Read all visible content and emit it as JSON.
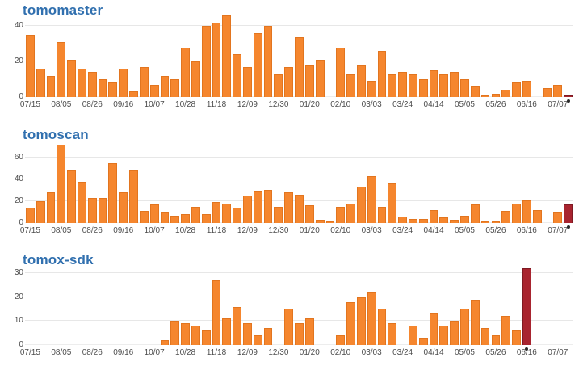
{
  "colors": {
    "bar_orange": "#F5862E",
    "bar_orange_border": "#E2751F",
    "bar_highlight_red": "#A8242F",
    "bar_highlight_border": "#7E1A23",
    "title_blue": "#3170AF",
    "axis_label_gray": "#4d4d4d",
    "gridline_gray": "#e7e7e7",
    "background": "#ffffff"
  },
  "chart_data": [
    {
      "type": "bar",
      "title": "tomomaster",
      "xlabel": "",
      "ylabel": "",
      "x_note": "weekly bins, one bar per week, tick label every 3rd week",
      "x_tick_labels": [
        "07/15",
        "08/05",
        "08/26",
        "09/16",
        "10/07",
        "10/28",
        "11/18",
        "12/09",
        "12/30",
        "01/20",
        "02/10",
        "03/03",
        "03/24",
        "04/14",
        "05/05",
        "05/26",
        "06/16",
        "07/07"
      ],
      "values": [
        35,
        16,
        12,
        31,
        21,
        16,
        14,
        10,
        8,
        16,
        3,
        17,
        7,
        12,
        10,
        28,
        20,
        40,
        42,
        46,
        24,
        17,
        36,
        40,
        13,
        17,
        34,
        18,
        21,
        0,
        28,
        13,
        18,
        9,
        26,
        13,
        14,
        13,
        10,
        15,
        13,
        14,
        10,
        6,
        1,
        2,
        4,
        8,
        9,
        0,
        5,
        7,
        1
      ],
      "y_ticks": [
        0,
        20,
        40
      ],
      "ylim": [
        0,
        47
      ],
      "grid": "horizontal",
      "legend": "none",
      "highlight_index": 52,
      "highlight_meaning": "last bar drawn in dark red with dot marker below axis"
    },
    {
      "type": "bar",
      "title": "tomoscan",
      "xlabel": "",
      "ylabel": "",
      "x_note": "weekly bins, one bar per week, tick label every 3rd week",
      "x_tick_labels": [
        "07/15",
        "08/05",
        "08/26",
        "09/16",
        "10/07",
        "10/28",
        "11/18",
        "12/09",
        "12/30",
        "01/20",
        "02/10",
        "03/03",
        "03/24",
        "04/14",
        "05/05",
        "05/26",
        "06/16",
        "07/07"
      ],
      "values": [
        14,
        20,
        28,
        72,
        48,
        38,
        23,
        23,
        55,
        28,
        48,
        11,
        17,
        10,
        7,
        8,
        15,
        8,
        19,
        18,
        14,
        25,
        29,
        30,
        15,
        28,
        26,
        16,
        3,
        1,
        15,
        18,
        33,
        43,
        15,
        36,
        6,
        4,
        4,
        12,
        5,
        3,
        7,
        17,
        1,
        1,
        11,
        18,
        21,
        12,
        0,
        10,
        17
      ],
      "y_ticks": [
        0,
        20,
        40,
        60
      ],
      "ylim": [
        0,
        74
      ],
      "grid": "horizontal",
      "legend": "none",
      "highlight_index": 52,
      "highlight_meaning": "last bar drawn in dark red with dot marker below axis"
    },
    {
      "type": "bar",
      "title": "tomox-sdk",
      "xlabel": "",
      "ylabel": "",
      "x_note": "weekly bins, one bar per week, tick label every 3rd week; no activity before mid-October",
      "x_tick_labels": [
        "07/15",
        "08/05",
        "08/26",
        "09/16",
        "10/07",
        "10/28",
        "11/18",
        "12/09",
        "12/30",
        "01/20",
        "02/10",
        "03/03",
        "03/24",
        "04/14",
        "05/05",
        "05/26",
        "06/16",
        "07/07"
      ],
      "values": [
        0,
        0,
        0,
        0,
        0,
        0,
        0,
        0,
        0,
        0,
        0,
        0,
        0,
        2,
        10,
        9,
        8,
        6,
        27,
        11,
        16,
        9,
        4,
        7,
        0,
        15,
        9,
        11,
        0,
        0,
        4,
        18,
        20,
        22,
        15,
        9,
        0,
        8,
        3,
        13,
        8,
        10,
        15,
        19,
        7,
        4,
        12,
        6,
        32,
        0,
        0,
        0,
        0
      ],
      "y_ticks": [
        0,
        10,
        20,
        30
      ],
      "ylim": [
        0,
        33
      ],
      "grid": "horizontal",
      "legend": "none",
      "highlight_index": 48,
      "highlight_meaning": "bar at 06/16 drawn in dark red with dot marker below axis"
    }
  ]
}
